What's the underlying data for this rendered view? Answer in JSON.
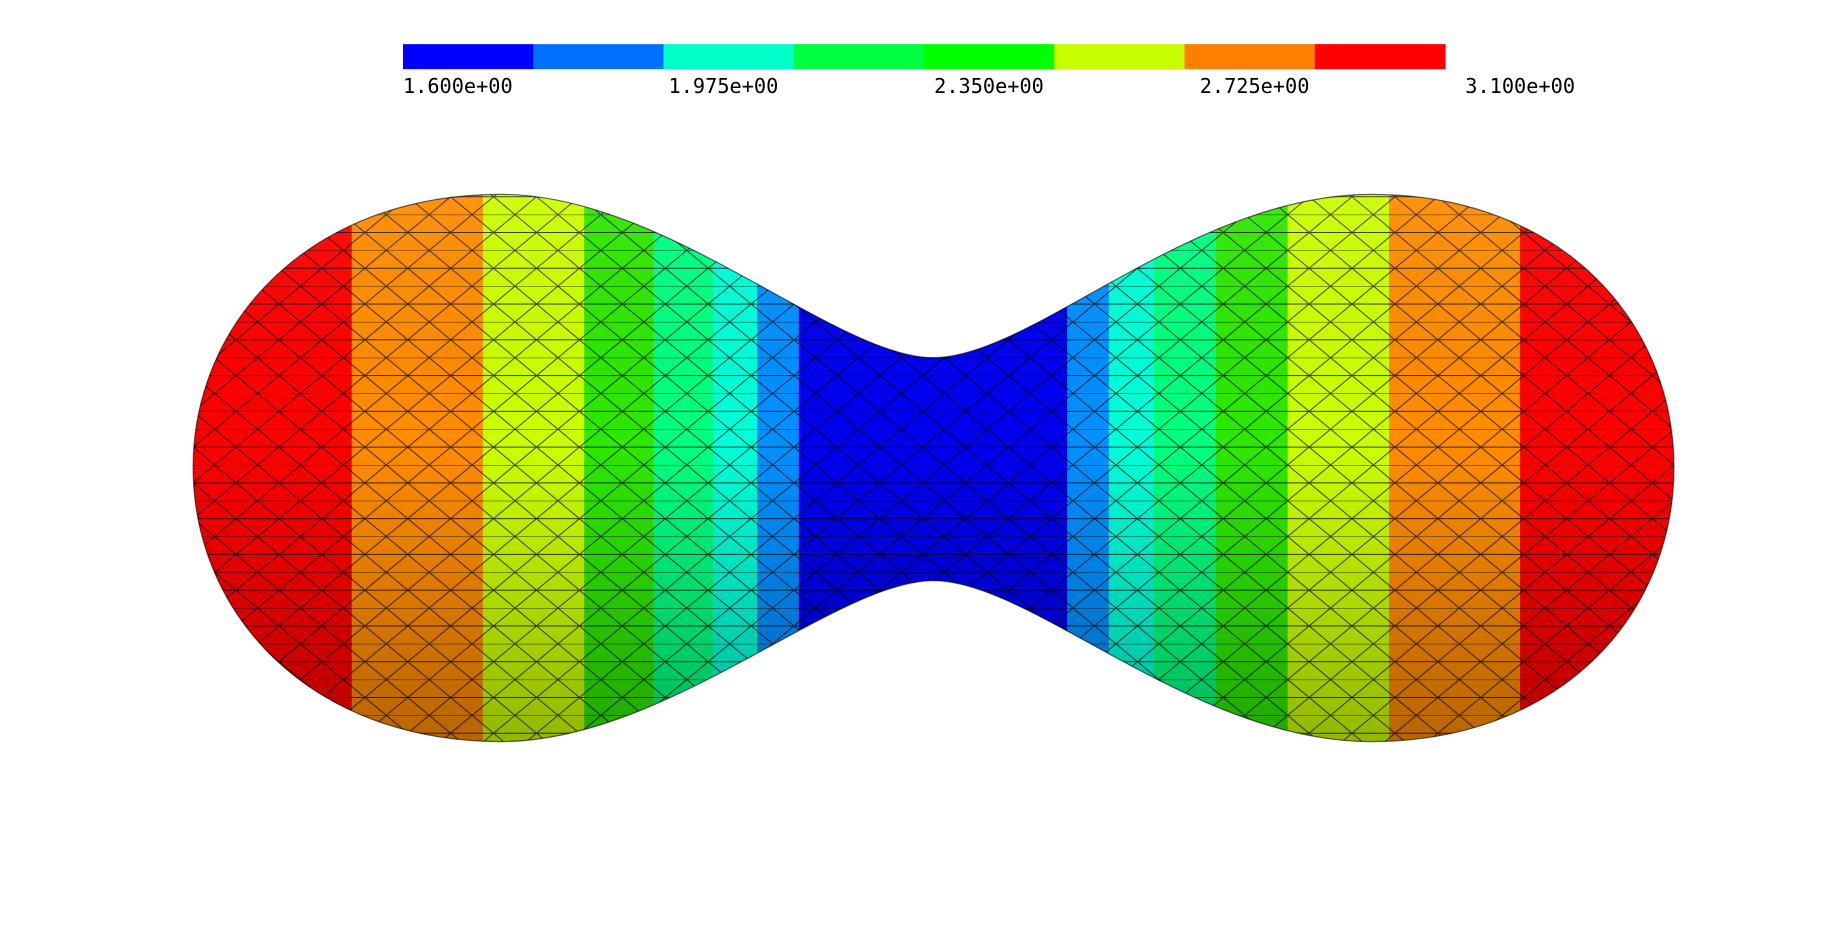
{
  "colorbar": {
    "colors": [
      "#0000ff",
      "#0070ff",
      "#00ffc8",
      "#00ff40",
      "#00ff00",
      "#c8ff00",
      "#ff8000",
      "#ff0000"
    ],
    "labels": [
      "1.600e+00",
      "1.975e+00",
      "2.350e+00",
      "2.725e+00",
      "3.100e+00"
    ]
  }
}
